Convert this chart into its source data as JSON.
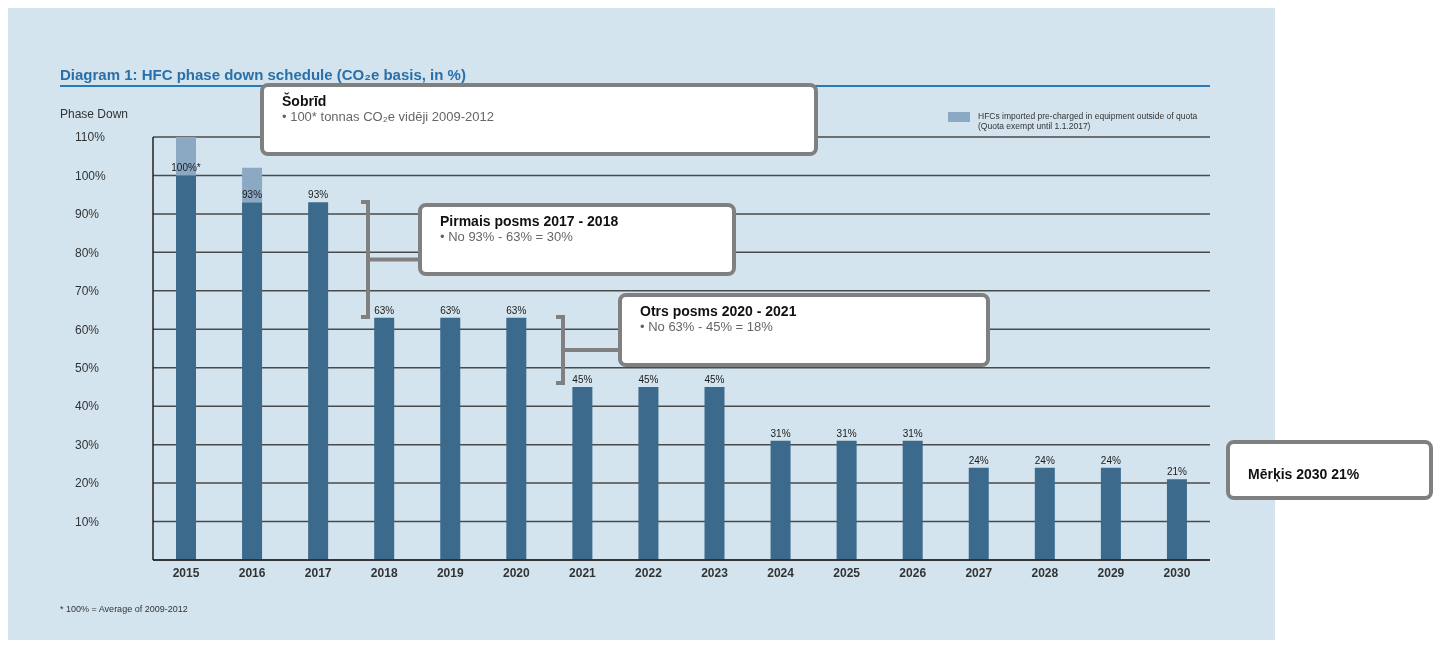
{
  "chart_data": {
    "type": "bar",
    "title": "Diagram 1: HFC phase down schedule (CO₂e basis, in %)",
    "ylabel": "Phase Down",
    "categories": [
      "2015",
      "2016",
      "2017",
      "2018",
      "2019",
      "2020",
      "2021",
      "2022",
      "2023",
      "2024",
      "2025",
      "2026",
      "2027",
      "2028",
      "2029",
      "2030"
    ],
    "series": [
      {
        "color": "#3b6a8c",
        "values": [
          100,
          93,
          93,
          63,
          63,
          63,
          45,
          45,
          45,
          31,
          31,
          31,
          24,
          24,
          24,
          21
        ],
        "value_labels": [
          "100%*",
          "93%",
          "93%",
          "63%",
          "63%",
          "63%",
          "45%",
          "45%",
          "45%",
          "31%",
          "31%",
          "31%",
          "24%",
          "24%",
          "24%",
          "21%"
        ]
      },
      {
        "name": "HFCs imported pre-charged in equipment outside of quota (Quota exempt until 1.1.2017)",
        "color": "#8ba9c3",
        "values": [
          10,
          9,
          null,
          null,
          null,
          null,
          null,
          null,
          null,
          null,
          null,
          null,
          null,
          null,
          null,
          null
        ]
      }
    ],
    "stacked": true,
    "ylim": [
      0,
      110
    ],
    "yticks": [
      {
        "value": 10,
        "label": "10%"
      },
      {
        "value": 20,
        "label": "20%"
      },
      {
        "value": 30,
        "label": "30%"
      },
      {
        "value": 40,
        "label": "40%"
      },
      {
        "value": 50,
        "label": "50%"
      },
      {
        "value": 60,
        "label": "60%"
      },
      {
        "value": 70,
        "label": "70%"
      },
      {
        "value": 80,
        "label": "80%"
      },
      {
        "value": 90,
        "label": "90%"
      },
      {
        "value": 100,
        "label": "100%"
      },
      {
        "value": 110,
        "label": "110%"
      }
    ],
    "grid": "y",
    "legend": "top right",
    "annotations": [
      "Šobrīd",
      "• 100* tonnas CO₂e vidēji 2009-2012",
      "Pirmais posms 2017 - 2018",
      "• No 93% - 63% = 30%",
      "Otrs posms 2020 - 2021",
      "• No 63% - 45% = 18%",
      "Mērķis 2030 21%",
      "* 100% = Average of 2009-2012"
    ]
  }
}
